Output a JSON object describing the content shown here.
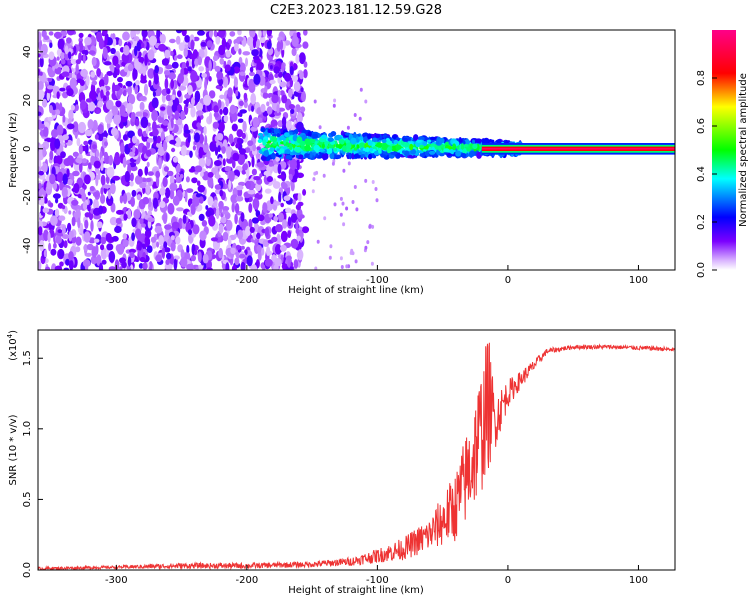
{
  "title": "C2E3.2023.181.12.59.G28",
  "chart_data": [
    {
      "type": "heatmap",
      "xlabel": "Height of straight line (km)",
      "ylabel": "Frequency (Hz)",
      "xlim": [
        -360,
        128
      ],
      "ylim": [
        -50,
        49
      ],
      "x_ticks": [
        -300,
        -200,
        -100,
        0,
        100
      ],
      "y_ticks": [
        -40,
        -20,
        0,
        20,
        40
      ],
      "colorbar": {
        "label": "Normalized spectral amplitude",
        "range": [
          0,
          1
        ],
        "ticks": [
          "0.0",
          "0.2",
          "0.4",
          "0.6",
          "0.8"
        ],
        "colormap": [
          "#ffffff",
          "#7b00ff",
          "#0000ff",
          "#00ffff",
          "#00ff00",
          "#ffff00",
          "#ff0000",
          "#ff00aa"
        ]
      },
      "description_regions": [
        {
          "x": [
            -360,
            -155
          ],
          "freq": [
            -50,
            49
          ],
          "amplitude": 0.1,
          "pattern": "noise"
        },
        {
          "x": [
            -190,
            10
          ],
          "freq_center": 2,
          "amplitude": 0.3,
          "pattern": "signal-narrowing"
        },
        {
          "x": [
            -25,
            128
          ],
          "freq_center": 0,
          "amplitude": 1.0,
          "pattern": "strong-line"
        }
      ]
    },
    {
      "type": "line",
      "xlabel": "Height of straight line (km)",
      "ylabel": "SNR (10 * v/v)",
      "multiplier_label": "(x10",
      "multiplier_exp": "4",
      "multiplier_close": ")",
      "xlim": [
        -360,
        128
      ],
      "ylim": [
        0,
        1.7
      ],
      "x_ticks": [
        -300,
        -200,
        -100,
        0,
        100
      ],
      "y_ticks": [
        "0.0",
        "0.5",
        "1.0",
        "1.5"
      ],
      "series": [
        {
          "color": "#ee3333",
          "x": [
            -360,
            -300,
            -250,
            -200,
            -150,
            -120,
            -100,
            -80,
            -60,
            -40,
            -30,
            -20,
            -15,
            -10,
            -5,
            0,
            10,
            20,
            30,
            50,
            80,
            110,
            128
          ],
          "values": [
            0.01,
            0.02,
            0.03,
            0.03,
            0.04,
            0.06,
            0.1,
            0.15,
            0.25,
            0.45,
            0.7,
            1.0,
            1.2,
            1.05,
            1.15,
            1.25,
            1.35,
            1.45,
            1.55,
            1.58,
            1.58,
            1.57,
            1.56
          ],
          "noise_amplitude": [
            0.01,
            0.01,
            0.02,
            0.02,
            0.02,
            0.03,
            0.05,
            0.08,
            0.12,
            0.25,
            0.35,
            0.45,
            0.5,
            0.2,
            0.15,
            0.1,
            0.06,
            0.04,
            0.02,
            0.015,
            0.015,
            0.015,
            0.015
          ]
        }
      ]
    }
  ]
}
